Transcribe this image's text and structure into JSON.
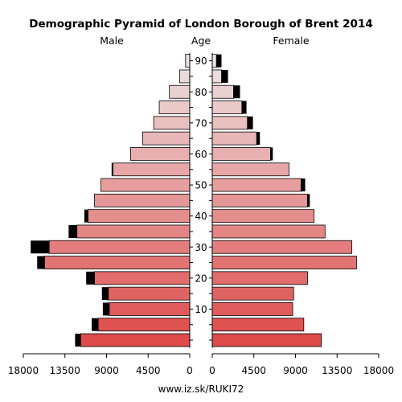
{
  "chart_data": {
    "type": "population-pyramid",
    "title": "Demographic Pyramid of London Borough of Brent 2014",
    "left_label": "Male",
    "center_label": "Age",
    "right_label": "Female",
    "footer": "www.iz.sk/RUKI72",
    "age_ticks": [
      "90",
      "80",
      "70",
      "60",
      "50",
      "40",
      "30",
      "20",
      "10"
    ],
    "value_ticks": [
      "18000",
      "13500",
      "9000",
      "4500",
      "0",
      "0",
      "4500",
      "9000",
      "13500",
      "18000"
    ],
    "xlim": [
      0,
      18000
    ],
    "age_groups": [
      "0-4",
      "5-9",
      "10-14",
      "15-19",
      "20-24",
      "25-29",
      "30-34",
      "35-39",
      "40-44",
      "45-49",
      "50-54",
      "55-59",
      "60-64",
      "65-69",
      "70-74",
      "75-79",
      "80-84",
      "85-89",
      "90+"
    ],
    "male_base": [
      11800,
      9900,
      8700,
      8800,
      10300,
      15700,
      15200,
      12200,
      11000,
      10300,
      9600,
      8300,
      6400,
      5100,
      3900,
      3300,
      2200,
      1100,
      450
    ],
    "male_extra": [
      600,
      700,
      700,
      700,
      900,
      800,
      2000,
      900,
      400,
      0,
      0,
      150,
      0,
      0,
      0,
      0,
      0,
      0,
      0
    ],
    "female_base": [
      11800,
      9900,
      8700,
      8800,
      10300,
      15600,
      15100,
      12200,
      11000,
      10300,
      9600,
      8300,
      6300,
      4800,
      3800,
      3200,
      2300,
      1000,
      450
    ],
    "female_extra": [
      0,
      0,
      0,
      0,
      0,
      0,
      0,
      0,
      0,
      250,
      450,
      0,
      250,
      350,
      600,
      500,
      700,
      700,
      550
    ]
  }
}
